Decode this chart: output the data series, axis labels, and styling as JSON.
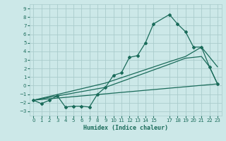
{
  "xlabel": "Humidex (Indice chaleur)",
  "xlim": [
    -0.5,
    23.5
  ],
  "ylim": [
    -3.5,
    9.5
  ],
  "xticks": [
    0,
    1,
    2,
    3,
    4,
    5,
    6,
    7,
    8,
    9,
    10,
    11,
    12,
    13,
    14,
    15,
    17,
    18,
    19,
    20,
    21,
    22,
    23
  ],
  "yticks": [
    -3,
    -2,
    -1,
    0,
    1,
    2,
    3,
    4,
    5,
    6,
    7,
    8,
    9
  ],
  "bg_color": "#cce8e8",
  "grid_color": "#aacccc",
  "line_color": "#1a6b5a",
  "line1_x": [
    0,
    1,
    2,
    3,
    4,
    5,
    6,
    7,
    8,
    9,
    10,
    11,
    12,
    13,
    14,
    15,
    17,
    18,
    19,
    20,
    21,
    22,
    23
  ],
  "line1_y": [
    -1.7,
    -2.1,
    -1.7,
    -1.2,
    -2.5,
    -2.4,
    -2.4,
    -2.5,
    -1.0,
    -0.2,
    1.2,
    1.5,
    3.3,
    3.5,
    5.0,
    7.2,
    8.3,
    7.2,
    6.3,
    4.5,
    4.5,
    2.2,
    0.2
  ],
  "line2_x": [
    0,
    23
  ],
  "line2_y": [
    -1.7,
    0.2
  ],
  "line3_x": [
    0,
    9,
    17,
    19,
    21,
    23
  ],
  "line3_y": [
    -1.7,
    0.3,
    2.8,
    3.4,
    4.5,
    2.2
  ],
  "line4_x": [
    0,
    9,
    17,
    19,
    21,
    22,
    23
  ],
  "line4_y": [
    -1.7,
    -0.2,
    2.5,
    3.2,
    3.4,
    2.2,
    0.2
  ]
}
